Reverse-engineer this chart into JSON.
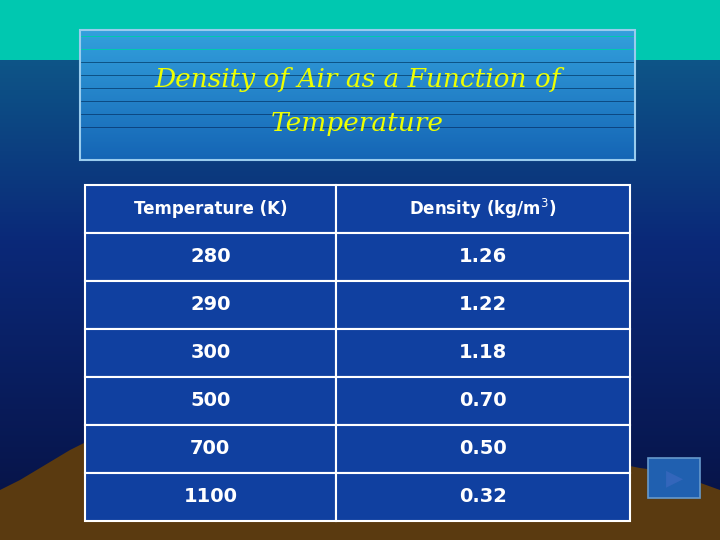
{
  "title_line1": "Density of Air as a Function of",
  "title_line2": "Temperature",
  "title_color": "#EEFF00",
  "col_header1": "Temperature (K)",
  "col_header2": "Density (kg/m",
  "col_header2_sup": "3",
  "col_header2_end": ")",
  "rows": [
    [
      "280",
      "1.26"
    ],
    [
      "290",
      "1.22"
    ],
    [
      "300",
      "1.18"
    ],
    [
      "500",
      "0.70"
    ],
    [
      "700",
      "0.50"
    ],
    [
      "1100",
      "0.32"
    ]
  ],
  "table_text_color": "#FFFFFF",
  "table_border_color": "#FFFFFF",
  "table_fill_color": "#1040A0",
  "title_box_color": "#2288CC",
  "title_box_edge": "#99CCEE",
  "bg_top": "#061040",
  "bg_mid": "#0A2070",
  "bg_lower": "#0E5080",
  "bg_teal": "#00C8B0",
  "mountain_color": "#5A3A10",
  "arrow_bg": "#2060B0",
  "arrow_edge": "#6699CC",
  "figsize": [
    7.2,
    5.4
  ],
  "dpi": 100
}
